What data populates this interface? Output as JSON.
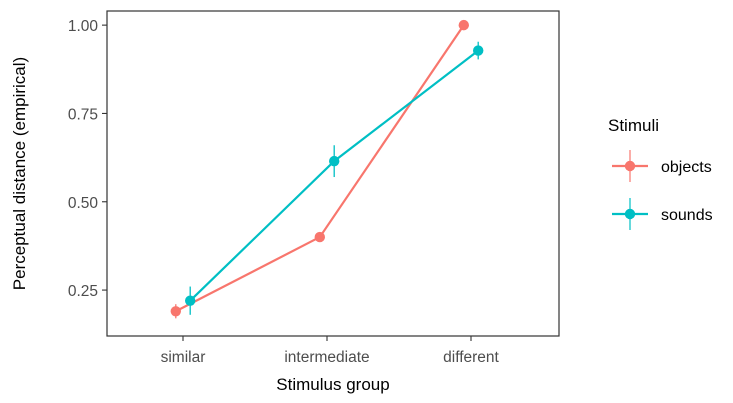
{
  "chart_data": {
    "type": "line",
    "xlabel": "Stimulus group",
    "ylabel": "Perceptual distance (empirical)",
    "categories": [
      "similar",
      "intermediate",
      "different"
    ],
    "ylim": [
      0.12,
      1.04
    ],
    "yticks": [
      0.25,
      0.5,
      0.75,
      1.0
    ],
    "ytick_labels": [
      "0.25",
      "0.50",
      "0.75",
      "1.00"
    ],
    "grid": false,
    "legend": {
      "title": "Stimuli",
      "placement": "right"
    },
    "series": [
      {
        "name": "objects",
        "color": "#F8766D",
        "values": [
          0.19,
          0.4,
          1.0
        ],
        "errors": [
          0.02,
          0.01,
          0.005
        ],
        "dodge": -0.05
      },
      {
        "name": "sounds",
        "color": "#00BFC4",
        "values": [
          0.22,
          0.615,
          0.928
        ],
        "errors": [
          0.04,
          0.045,
          0.025
        ],
        "dodge": 0.05
      }
    ]
  }
}
